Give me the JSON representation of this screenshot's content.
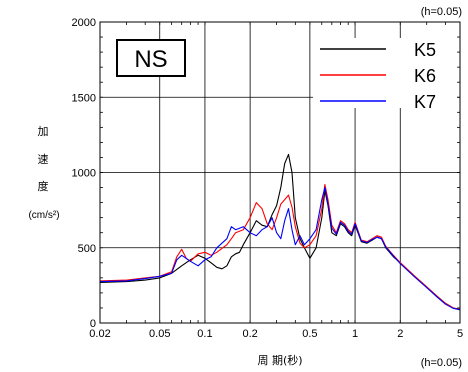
{
  "chart_data": {
    "type": "line",
    "x_scale": "log",
    "xlim": [
      0.02,
      5
    ],
    "ylim": [
      0,
      2000
    ],
    "grid": true,
    "x_ticks": [
      0.02,
      0.05,
      0.1,
      0.2,
      0.5,
      1,
      2,
      5
    ],
    "x_tick_labels": [
      "0.02",
      "0.05",
      "0.1",
      "0.2",
      "0.5",
      "1",
      "2",
      "5"
    ],
    "y_ticks": [
      0,
      500,
      1000,
      1500,
      2000
    ],
    "y_tick_labels": [
      "0",
      "500",
      "1000",
      "1500",
      "2000"
    ],
    "xlabel": "周 期(秒)",
    "ylabel_chars": [
      "加",
      "速",
      "度"
    ],
    "ylabel_unit": "(cm/s²)",
    "annotation_top_right": "(h=0.05)",
    "annotation_bottom_right": "(h=0.05)",
    "component_label": "NS",
    "legend_position": "top-right",
    "series": [
      {
        "name": "K5",
        "color": "#000000",
        "points": [
          [
            0.02,
            270
          ],
          [
            0.03,
            275
          ],
          [
            0.04,
            285
          ],
          [
            0.05,
            300
          ],
          [
            0.06,
            330
          ],
          [
            0.07,
            380
          ],
          [
            0.08,
            420
          ],
          [
            0.09,
            450
          ],
          [
            0.1,
            430
          ],
          [
            0.11,
            400
          ],
          [
            0.12,
            370
          ],
          [
            0.13,
            360
          ],
          [
            0.14,
            380
          ],
          [
            0.15,
            440
          ],
          [
            0.16,
            460
          ],
          [
            0.17,
            470
          ],
          [
            0.18,
            520
          ],
          [
            0.2,
            600
          ],
          [
            0.22,
            680
          ],
          [
            0.24,
            650
          ],
          [
            0.26,
            640
          ],
          [
            0.28,
            720
          ],
          [
            0.3,
            780
          ],
          [
            0.32,
            900
          ],
          [
            0.34,
            1060
          ],
          [
            0.36,
            1120
          ],
          [
            0.38,
            1000
          ],
          [
            0.4,
            700
          ],
          [
            0.43,
            560
          ],
          [
            0.46,
            500
          ],
          [
            0.5,
            430
          ],
          [
            0.55,
            500
          ],
          [
            0.6,
            700
          ],
          [
            0.63,
            880
          ],
          [
            0.66,
            780
          ],
          [
            0.7,
            600
          ],
          [
            0.75,
            580
          ],
          [
            0.8,
            660
          ],
          [
            0.85,
            640
          ],
          [
            0.9,
            600
          ],
          [
            0.95,
            580
          ],
          [
            1.0,
            650
          ],
          [
            1.1,
            540
          ],
          [
            1.2,
            530
          ],
          [
            1.3,
            550
          ],
          [
            1.4,
            570
          ],
          [
            1.5,
            560
          ],
          [
            1.6,
            500
          ],
          [
            1.8,
            440
          ],
          [
            2.0,
            400
          ],
          [
            2.5,
            310
          ],
          [
            3.0,
            240
          ],
          [
            3.5,
            180
          ],
          [
            4.0,
            130
          ],
          [
            4.5,
            100
          ],
          [
            5.0,
            90
          ]
        ]
      },
      {
        "name": "K6",
        "color": "#ff0000",
        "points": [
          [
            0.02,
            280
          ],
          [
            0.03,
            285
          ],
          [
            0.04,
            300
          ],
          [
            0.05,
            310
          ],
          [
            0.06,
            340
          ],
          [
            0.065,
            440
          ],
          [
            0.07,
            490
          ],
          [
            0.075,
            430
          ],
          [
            0.08,
            410
          ],
          [
            0.09,
            460
          ],
          [
            0.1,
            470
          ],
          [
            0.11,
            450
          ],
          [
            0.12,
            470
          ],
          [
            0.14,
            520
          ],
          [
            0.15,
            560
          ],
          [
            0.16,
            600
          ],
          [
            0.18,
            620
          ],
          [
            0.2,
            700
          ],
          [
            0.22,
            800
          ],
          [
            0.24,
            760
          ],
          [
            0.26,
            660
          ],
          [
            0.28,
            620
          ],
          [
            0.3,
            700
          ],
          [
            0.32,
            790
          ],
          [
            0.34,
            820
          ],
          [
            0.36,
            850
          ],
          [
            0.38,
            770
          ],
          [
            0.4,
            640
          ],
          [
            0.43,
            530
          ],
          [
            0.46,
            500
          ],
          [
            0.5,
            520
          ],
          [
            0.55,
            580
          ],
          [
            0.6,
            760
          ],
          [
            0.63,
            920
          ],
          [
            0.66,
            820
          ],
          [
            0.7,
            650
          ],
          [
            0.75,
            600
          ],
          [
            0.8,
            680
          ],
          [
            0.85,
            660
          ],
          [
            0.9,
            620
          ],
          [
            0.95,
            600
          ],
          [
            1.0,
            670
          ],
          [
            1.1,
            550
          ],
          [
            1.2,
            540
          ],
          [
            1.3,
            560
          ],
          [
            1.4,
            580
          ],
          [
            1.5,
            570
          ],
          [
            1.6,
            510
          ],
          [
            1.8,
            450
          ],
          [
            2.0,
            400
          ],
          [
            2.5,
            310
          ],
          [
            3.0,
            240
          ],
          [
            3.5,
            180
          ],
          [
            4.0,
            130
          ],
          [
            4.5,
            100
          ],
          [
            5.0,
            90
          ]
        ]
      },
      {
        "name": "K7",
        "color": "#0000ff",
        "points": [
          [
            0.02,
            275
          ],
          [
            0.03,
            280
          ],
          [
            0.04,
            295
          ],
          [
            0.05,
            310
          ],
          [
            0.06,
            330
          ],
          [
            0.065,
            420
          ],
          [
            0.07,
            450
          ],
          [
            0.08,
            410
          ],
          [
            0.09,
            380
          ],
          [
            0.1,
            420
          ],
          [
            0.11,
            440
          ],
          [
            0.12,
            500
          ],
          [
            0.14,
            560
          ],
          [
            0.15,
            640
          ],
          [
            0.16,
            620
          ],
          [
            0.18,
            640
          ],
          [
            0.2,
            600
          ],
          [
            0.22,
            580
          ],
          [
            0.24,
            620
          ],
          [
            0.26,
            640
          ],
          [
            0.28,
            700
          ],
          [
            0.3,
            600
          ],
          [
            0.32,
            560
          ],
          [
            0.34,
            680
          ],
          [
            0.36,
            760
          ],
          [
            0.38,
            620
          ],
          [
            0.4,
            520
          ],
          [
            0.43,
            580
          ],
          [
            0.46,
            520
          ],
          [
            0.5,
            560
          ],
          [
            0.55,
            620
          ],
          [
            0.6,
            820
          ],
          [
            0.63,
            900
          ],
          [
            0.66,
            790
          ],
          [
            0.7,
            630
          ],
          [
            0.75,
            590
          ],
          [
            0.8,
            670
          ],
          [
            0.85,
            650
          ],
          [
            0.9,
            610
          ],
          [
            0.95,
            590
          ],
          [
            1.0,
            660
          ],
          [
            1.1,
            545
          ],
          [
            1.2,
            535
          ],
          [
            1.3,
            555
          ],
          [
            1.4,
            570
          ],
          [
            1.5,
            560
          ],
          [
            1.6,
            505
          ],
          [
            1.8,
            445
          ],
          [
            2.0,
            395
          ],
          [
            2.5,
            305
          ],
          [
            3.0,
            235
          ],
          [
            3.5,
            175
          ],
          [
            4.0,
            125
          ],
          [
            4.5,
            98
          ],
          [
            5.0,
            88
          ]
        ]
      }
    ]
  }
}
